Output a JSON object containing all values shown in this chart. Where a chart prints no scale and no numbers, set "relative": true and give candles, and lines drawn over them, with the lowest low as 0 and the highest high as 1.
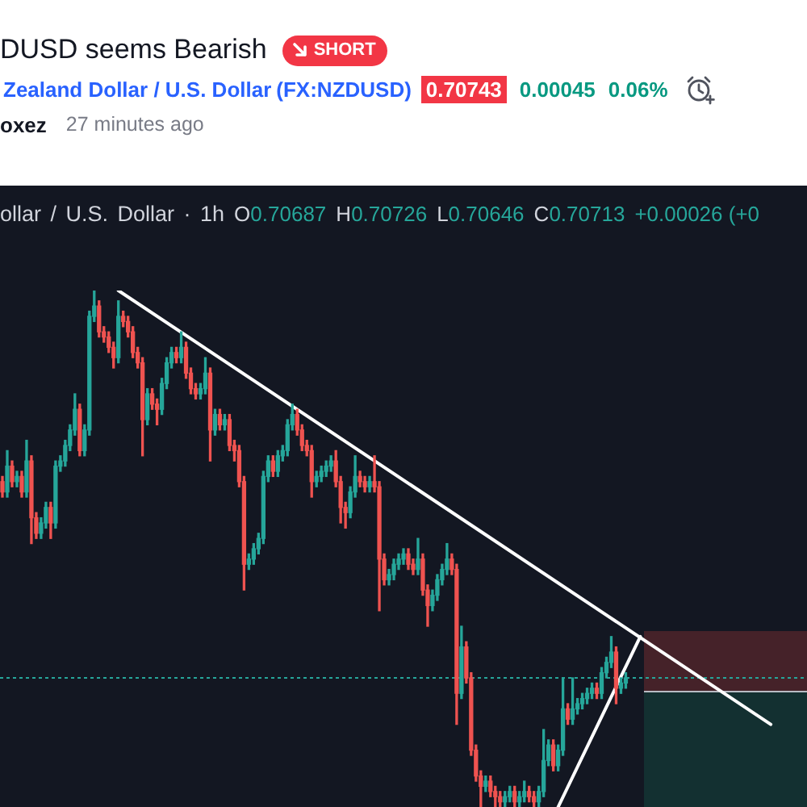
{
  "chart_data": {
    "type": "candlestick",
    "title": "DUSD seems Bearish",
    "subtitle": "Zealand Dollar / U.S. Dollar",
    "annotations": [
      "SHORT",
      "(FX:NZDUSD)",
      "0.70743",
      "0.00045",
      "0.06%",
      "oxez",
      "27 minutes ago",
      "ollar / U.S. Dollar · 1h",
      "O0.70687",
      "H0.70726",
      "L0.70646",
      "C0.70713",
      "+0.00026 (+0"
    ],
    "relative": true,
    "marker": "none",
    "categories": [
      null,
      null,
      null,
      null,
      null,
      null,
      null,
      null,
      null,
      null,
      null,
      null,
      null,
      null,
      null,
      null,
      null,
      null,
      null,
      null,
      null,
      null,
      null,
      null,
      null,
      null,
      null,
      null,
      null,
      null,
      null,
      null,
      null,
      null,
      null,
      null,
      null,
      null,
      null,
      null,
      null,
      null,
      null,
      null,
      null,
      null,
      null,
      null,
      null,
      null,
      null,
      null,
      null,
      null,
      null,
      null,
      null,
      null,
      null,
      null,
      null,
      null,
      null,
      null,
      null,
      null,
      null,
      null,
      null,
      null,
      null,
      null,
      null,
      null,
      null,
      null,
      null,
      null,
      null,
      null,
      null,
      null,
      null,
      null,
      null,
      null,
      null,
      null,
      null,
      null,
      null,
      null,
      null,
      null,
      null,
      null,
      null,
      null,
      null,
      null,
      null,
      null,
      null,
      null,
      null,
      null,
      null,
      null,
      null,
      null,
      null,
      null,
      null,
      null,
      null,
      null,
      null,
      null,
      null,
      null,
      null,
      null,
      null,
      null,
      null,
      null,
      null,
      null,
      null,
      null,
      null,
      null,
      null,
      null,
      null,
      null,
      null,
      null,
      null,
      null,
      null,
      null,
      null,
      null,
      null,
      null,
      null,
      null,
      null,
      null,
      null,
      null,
      null,
      null,
      null,
      null,
      null,
      null,
      null,
      null,
      null,
      null,
      null,
      null,
      null,
      null,
      null
    ],
    "series": [
      {
        "ohlc": [
          [
            0.63,
            0.64,
            0.6,
            0.61
          ],
          [
            0.61,
            0.69,
            0.6,
            0.66
          ],
          [
            0.66,
            0.67,
            0.62,
            0.63
          ],
          [
            0.63,
            0.65,
            0.62,
            0.64
          ],
          [
            0.64,
            0.65,
            0.6,
            0.61
          ],
          [
            0.61,
            0.71,
            0.6,
            0.67
          ],
          [
            0.67,
            0.68,
            0.51,
            0.56
          ],
          [
            0.56,
            0.57,
            0.52,
            0.53
          ],
          [
            0.53,
            0.56,
            0.52,
            0.55
          ],
          [
            0.55,
            0.59,
            0.54,
            0.58
          ],
          [
            0.58,
            0.59,
            0.52,
            0.55
          ],
          [
            0.55,
            0.67,
            0.54,
            0.66
          ],
          [
            0.66,
            0.68,
            0.65,
            0.67
          ],
          [
            0.67,
            0.71,
            0.66,
            0.7
          ],
          [
            0.7,
            0.74,
            0.69,
            0.73
          ],
          [
            0.73,
            0.8,
            0.72,
            0.77
          ],
          [
            0.77,
            0.78,
            0.68,
            0.69
          ],
          [
            0.69,
            0.74,
            0.68,
            0.73
          ],
          [
            0.73,
            0.96,
            0.72,
            0.95
          ],
          [
            0.95,
            1.0,
            0.94,
            0.97
          ],
          [
            0.97,
            0.98,
            0.91,
            0.92
          ],
          [
            0.92,
            0.93,
            0.9,
            0.91
          ],
          [
            0.91,
            0.92,
            0.88,
            0.89
          ],
          [
            0.89,
            0.9,
            0.85,
            0.87
          ],
          [
            0.87,
            0.98,
            0.86,
            0.95
          ],
          [
            0.95,
            0.96,
            0.93,
            0.94
          ],
          [
            0.94,
            0.95,
            0.91,
            0.92
          ],
          [
            0.92,
            0.93,
            0.87,
            0.88
          ],
          [
            0.88,
            0.89,
            0.85,
            0.86
          ],
          [
            0.86,
            0.87,
            0.68,
            0.75
          ],
          [
            0.75,
            0.81,
            0.74,
            0.8
          ],
          [
            0.8,
            0.81,
            0.77,
            0.78
          ],
          [
            0.78,
            0.79,
            0.74,
            0.77
          ],
          [
            0.77,
            0.83,
            0.76,
            0.82
          ],
          [
            0.82,
            0.87,
            0.81,
            0.86
          ],
          [
            0.86,
            0.89,
            0.85,
            0.88
          ],
          [
            0.88,
            0.89,
            0.86,
            0.87
          ],
          [
            0.87,
            0.92,
            0.86,
            0.89
          ],
          [
            0.89,
            0.9,
            0.83,
            0.84
          ],
          [
            0.84,
            0.85,
            0.8,
            0.81
          ],
          [
            0.81,
            0.82,
            0.79,
            0.8
          ],
          [
            0.8,
            0.82,
            0.79,
            0.81
          ],
          [
            0.81,
            0.87,
            0.8,
            0.84
          ],
          [
            0.84,
            0.85,
            0.67,
            0.73
          ],
          [
            0.73,
            0.77,
            0.72,
            0.76
          ],
          [
            0.76,
            0.77,
            0.73,
            0.74
          ],
          [
            0.74,
            0.76,
            0.73,
            0.75
          ],
          [
            0.75,
            0.76,
            0.69,
            0.7
          ],
          [
            0.7,
            0.71,
            0.67,
            0.69
          ],
          [
            0.69,
            0.7,
            0.62,
            0.63
          ],
          [
            0.63,
            0.64,
            0.42,
            0.47
          ],
          [
            0.47,
            0.49,
            0.46,
            0.48
          ],
          [
            0.48,
            0.51,
            0.47,
            0.5
          ],
          [
            0.5,
            0.53,
            0.49,
            0.52
          ],
          [
            0.52,
            0.65,
            0.51,
            0.64
          ],
          [
            0.64,
            0.68,
            0.63,
            0.67
          ],
          [
            0.67,
            0.68,
            0.64,
            0.65
          ],
          [
            0.65,
            0.69,
            0.64,
            0.68
          ],
          [
            0.68,
            0.7,
            0.67,
            0.69
          ],
          [
            0.69,
            0.75,
            0.68,
            0.74
          ],
          [
            0.74,
            0.78,
            0.73,
            0.76
          ],
          [
            0.76,
            0.77,
            0.72,
            0.73
          ],
          [
            0.73,
            0.74,
            0.69,
            0.7
          ],
          [
            0.7,
            0.71,
            0.68,
            0.69
          ],
          [
            0.69,
            0.7,
            0.6,
            0.63
          ],
          [
            0.63,
            0.65,
            0.62,
            0.64
          ],
          [
            0.64,
            0.66,
            0.63,
            0.65
          ],
          [
            0.65,
            0.67,
            0.64,
            0.66
          ],
          [
            0.66,
            0.68,
            0.65,
            0.67
          ],
          [
            0.67,
            0.69,
            0.62,
            0.63
          ],
          [
            0.63,
            0.64,
            0.55,
            0.58
          ],
          [
            0.58,
            0.59,
            0.54,
            0.57
          ],
          [
            0.57,
            0.62,
            0.56,
            0.61
          ],
          [
            0.61,
            0.68,
            0.6,
            0.64
          ],
          [
            0.64,
            0.65,
            0.62,
            0.63
          ],
          [
            0.63,
            0.64,
            0.61,
            0.62
          ],
          [
            0.62,
            0.64,
            0.61,
            0.63
          ],
          [
            0.63,
            0.68,
            0.61,
            0.62
          ],
          [
            0.62,
            0.63,
            0.38,
            0.48
          ],
          [
            0.48,
            0.49,
            0.43,
            0.44
          ],
          [
            0.44,
            0.46,
            0.43,
            0.45
          ],
          [
            0.45,
            0.48,
            0.44,
            0.47
          ],
          [
            0.47,
            0.49,
            0.46,
            0.48
          ],
          [
            0.48,
            0.5,
            0.47,
            0.49
          ],
          [
            0.49,
            0.5,
            0.46,
            0.47
          ],
          [
            0.47,
            0.48,
            0.45,
            0.46
          ],
          [
            0.46,
            0.52,
            0.45,
            0.48
          ],
          [
            0.48,
            0.49,
            0.41,
            0.42
          ],
          [
            0.42,
            0.43,
            0.35,
            0.39
          ],
          [
            0.39,
            0.42,
            0.38,
            0.41
          ],
          [
            0.41,
            0.45,
            0.4,
            0.44
          ],
          [
            0.44,
            0.47,
            0.43,
            0.46
          ],
          [
            0.46,
            0.51,
            0.45,
            0.48
          ],
          [
            0.48,
            0.49,
            0.45,
            0.46
          ],
          [
            0.46,
            0.47,
            0.16,
            0.22
          ],
          [
            0.22,
            0.35,
            0.21,
            0.31
          ],
          [
            0.31,
            0.32,
            0.24,
            0.25
          ],
          [
            0.25,
            0.26,
            0.1,
            0.11
          ],
          [
            0.11,
            0.12,
            0.05,
            0.06
          ],
          [
            0.06,
            0.07,
            0.0,
            0.04
          ],
          [
            0.04,
            0.06,
            0.03,
            0.05
          ],
          [
            0.05,
            0.06,
            0.02,
            0.03
          ],
          [
            0.03,
            0.04,
            0.0,
            0.02
          ],
          [
            0.02,
            0.03,
            0.0,
            0.01
          ],
          [
            0.01,
            0.03,
            0.0,
            0.02
          ],
          [
            0.02,
            0.04,
            0.01,
            0.03
          ],
          [
            0.03,
            0.04,
            0.0,
            0.01
          ],
          [
            0.01,
            0.03,
            0.0,
            0.02
          ],
          [
            0.02,
            0.05,
            0.01,
            0.03
          ],
          [
            0.03,
            0.04,
            0.01,
            0.02
          ],
          [
            0.02,
            0.03,
            0.0,
            0.01
          ],
          [
            0.01,
            0.04,
            0.0,
            0.03
          ],
          [
            0.03,
            0.15,
            0.02,
            0.09
          ],
          [
            0.09,
            0.13,
            0.08,
            0.12
          ],
          [
            0.12,
            0.13,
            0.07,
            0.08
          ],
          [
            0.08,
            0.12,
            0.07,
            0.11
          ],
          [
            0.11,
            0.25,
            0.1,
            0.19
          ],
          [
            0.19,
            0.2,
            0.16,
            0.17
          ],
          [
            0.17,
            0.25,
            0.16,
            0.19
          ],
          [
            0.19,
            0.21,
            0.18,
            0.2
          ],
          [
            0.2,
            0.22,
            0.19,
            0.21
          ],
          [
            0.21,
            0.23,
            0.2,
            0.22
          ],
          [
            0.22,
            0.24,
            0.21,
            0.23
          ],
          [
            0.23,
            0.24,
            0.21,
            0.22
          ],
          [
            0.22,
            0.27,
            0.21,
            0.26
          ],
          [
            0.26,
            0.29,
            0.25,
            0.28
          ],
          [
            0.28,
            0.33,
            0.27,
            0.3
          ],
          [
            0.3,
            0.31,
            0.2,
            0.23
          ],
          [
            0.23,
            0.25,
            0.22,
            0.24
          ],
          [
            0.24,
            0.26,
            0.23,
            0.25
          ],
          null,
          null,
          null,
          null,
          null,
          null,
          null,
          null,
          null,
          null,
          null,
          null,
          null,
          null,
          null,
          null,
          null,
          null,
          null,
          null,
          null,
          null,
          null,
          null,
          null,
          null,
          null,
          null,
          null,
          null,
          null,
          null,
          null,
          null,
          null,
          null,
          null
        ],
        "colors": [
          "#ef5350",
          "#26a69a",
          "#ef5350",
          "#26a69a",
          "#ef5350",
          "#26a69a",
          "#ef5350",
          "#ef5350",
          "#26a69a",
          "#26a69a",
          "#ef5350",
          "#26a69a",
          "#26a69a",
          "#26a69a",
          "#26a69a",
          "#26a69a",
          "#ef5350",
          "#26a69a",
          "#26a69a",
          "#26a69a",
          "#ef5350",
          "#ef5350",
          "#ef5350",
          "#ef5350",
          "#26a69a",
          "#ef5350",
          "#ef5350",
          "#ef5350",
          "#ef5350",
          "#ef5350",
          "#26a69a",
          "#ef5350",
          "#ef5350",
          "#26a69a",
          "#26a69a",
          "#26a69a",
          "#ef5350",
          "#26a69a",
          "#ef5350",
          "#ef5350",
          "#ef5350",
          "#26a69a",
          "#26a69a",
          "#ef5350",
          "#26a69a",
          "#ef5350",
          "#26a69a",
          "#ef5350",
          "#ef5350",
          "#ef5350",
          "#ef5350",
          "#26a69a",
          "#26a69a",
          "#26a69a",
          "#26a69a",
          "#26a69a",
          "#ef5350",
          "#26a69a",
          "#26a69a",
          "#26a69a",
          "#26a69a",
          "#ef5350",
          "#ef5350",
          "#ef5350",
          "#ef5350",
          "#26a69a",
          "#26a69a",
          "#26a69a",
          "#26a69a",
          "#ef5350",
          "#ef5350",
          "#ef5350",
          "#26a69a",
          "#26a69a",
          "#ef5350",
          "#ef5350",
          "#26a69a",
          "#ef5350",
          "#ef5350",
          "#ef5350",
          "#26a69a",
          "#26a69a",
          "#26a69a",
          "#26a69a",
          "#ef5350",
          "#ef5350",
          "#26a69a",
          "#ef5350",
          "#ef5350",
          "#26a69a",
          "#26a69a",
          "#26a69a",
          "#26a69a",
          "#ef5350",
          "#ef5350",
          "#26a69a",
          "#ef5350",
          "#ef5350",
          "#ef5350",
          "#ef5350",
          "#26a69a",
          "#ef5350",
          "#ef5350",
          "#ef5350",
          "#26a69a",
          "#26a69a",
          "#ef5350",
          "#26a69a",
          "#26a69a",
          "#ef5350",
          "#ef5350",
          "#26a69a",
          "#26a69a",
          "#26a69a",
          "#ef5350",
          "#26a69a",
          "#26a69a",
          "#ef5350",
          "#26a69a",
          "#26a69a",
          "#26a69a",
          "#26a69a",
          "#26a69a",
          "#ef5350",
          "#26a69a",
          "#26a69a",
          "#26a69a",
          "#ef5350",
          "#26a69a",
          "#26a69a",
          null,
          null,
          null,
          null,
          null,
          null,
          null,
          null,
          null,
          null,
          null,
          null,
          null,
          null,
          null,
          null,
          null,
          null,
          null,
          null,
          null,
          null,
          null,
          null,
          null,
          null,
          null,
          null,
          null,
          null,
          null,
          null,
          null,
          null,
          null,
          null,
          null
        ]
      },
      {
        "type": "line",
        "color": "#ffffff",
        "values": [
          null,
          null,
          null,
          null,
          null,
          null,
          null,
          null,
          null,
          null,
          null,
          null,
          null,
          null,
          null,
          null,
          null,
          null,
          null,
          null,
          null,
          null,
          null,
          null,
          1.0,
          null,
          null,
          null,
          null,
          null,
          null,
          null,
          null,
          null,
          null,
          null,
          null,
          null,
          null,
          null,
          null,
          null,
          null,
          null,
          null,
          null,
          null,
          null,
          null,
          null,
          null,
          null,
          null,
          null,
          null,
          null,
          null,
          null,
          null,
          null,
          null,
          null,
          null,
          null,
          null,
          null,
          null,
          null,
          null,
          null,
          null,
          null,
          null,
          null,
          null,
          null,
          null,
          null,
          null,
          null,
          null,
          null,
          null,
          null,
          null,
          null,
          null,
          null,
          null,
          null,
          null,
          null,
          null,
          null,
          null,
          null,
          null,
          null,
          null,
          null,
          null,
          null,
          null,
          null,
          null,
          null,
          null,
          null,
          null,
          null,
          null,
          null,
          null,
          null,
          null,
          null,
          null,
          null,
          null,
          null,
          null,
          null,
          null,
          null,
          null,
          null,
          null,
          null,
          null,
          null,
          null,
          null,
          null,
          null,
          null,
          null,
          null,
          null,
          null,
          null,
          null,
          null,
          null,
          null,
          null,
          null,
          null,
          null,
          null,
          null,
          null,
          null,
          null,
          null,
          null,
          null,
          null,
          null,
          null,
          0.16,
          null,
          null,
          null,
          null,
          null,
          null,
          null
        ]
      },
      {
        "type": "line",
        "color": "#ffffff",
        "values": [
          null,
          null,
          null,
          null,
          null,
          null,
          null,
          null,
          null,
          null,
          null,
          null,
          null,
          null,
          null,
          null,
          null,
          null,
          null,
          null,
          null,
          null,
          null,
          null,
          null,
          null,
          null,
          null,
          null,
          null,
          null,
          null,
          null,
          null,
          null,
          null,
          null,
          null,
          null,
          null,
          null,
          null,
          null,
          null,
          null,
          null,
          null,
          null,
          null,
          null,
          null,
          null,
          null,
          null,
          null,
          null,
          null,
          null,
          null,
          null,
          null,
          null,
          null,
          null,
          null,
          null,
          null,
          null,
          null,
          null,
          null,
          null,
          null,
          null,
          null,
          null,
          null,
          null,
          null,
          null,
          null,
          null,
          null,
          null,
          null,
          null,
          null,
          null,
          null,
          null,
          null,
          null,
          null,
          null,
          null,
          null,
          null,
          null,
          null,
          null,
          null,
          null,
          null,
          null,
          null,
          null,
          null,
          null,
          null,
          null,
          null,
          null,
          null,
          null,
          null,
          0.0,
          null,
          null,
          null,
          null,
          null,
          null,
          null,
          null,
          null,
          null,
          null,
          null,
          null,
          null,
          null,
          null,
          0.33,
          null,
          null,
          null,
          null,
          null,
          null,
          null,
          null,
          null,
          null,
          null,
          null,
          null,
          null,
          null,
          null,
          null,
          null,
          null,
          null,
          null,
          null,
          null,
          null,
          null,
          null,
          null,
          null,
          null,
          null,
          null,
          null,
          null,
          null
        ]
      }
    ],
    "ref_lines": [
      {
        "axis": "y",
        "value": 0.25,
        "color": "#26a69a",
        "line_style": "dotted"
      }
    ]
  }
}
